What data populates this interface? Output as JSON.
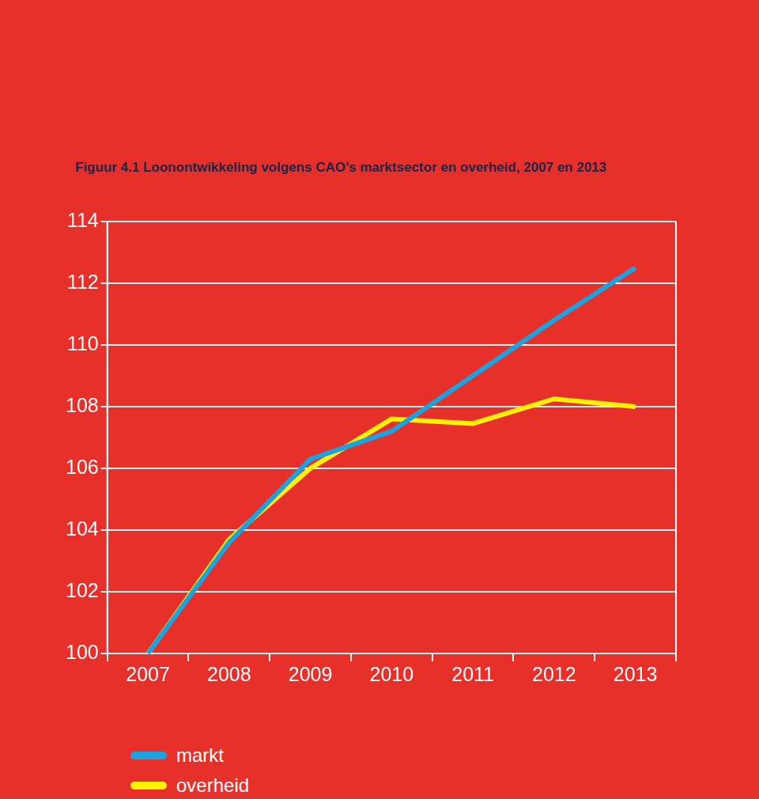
{
  "chart_data": {
    "type": "line",
    "title": "Figuur 4.1  Loonontwikkeling volgens CAO’s marktsector en overheid, 2007 en 2013",
    "categories": [
      "2007",
      "2008",
      "2009",
      "2010",
      "2011",
      "2012",
      "2013"
    ],
    "series": [
      {
        "name": "markt",
        "color": "#1aa3e0",
        "values": [
          100,
          103.6,
          106.3,
          107.2,
          109.0,
          110.8,
          112.5
        ]
      },
      {
        "name": "overheid",
        "color": "#fff200",
        "values": [
          100,
          103.7,
          106.0,
          107.6,
          107.45,
          108.25,
          108.0
        ]
      }
    ],
    "ylim": [
      100,
      114
    ],
    "yticks": [
      100,
      102,
      104,
      106,
      108,
      110,
      112,
      114
    ],
    "grid": true,
    "legend": "bottom"
  }
}
